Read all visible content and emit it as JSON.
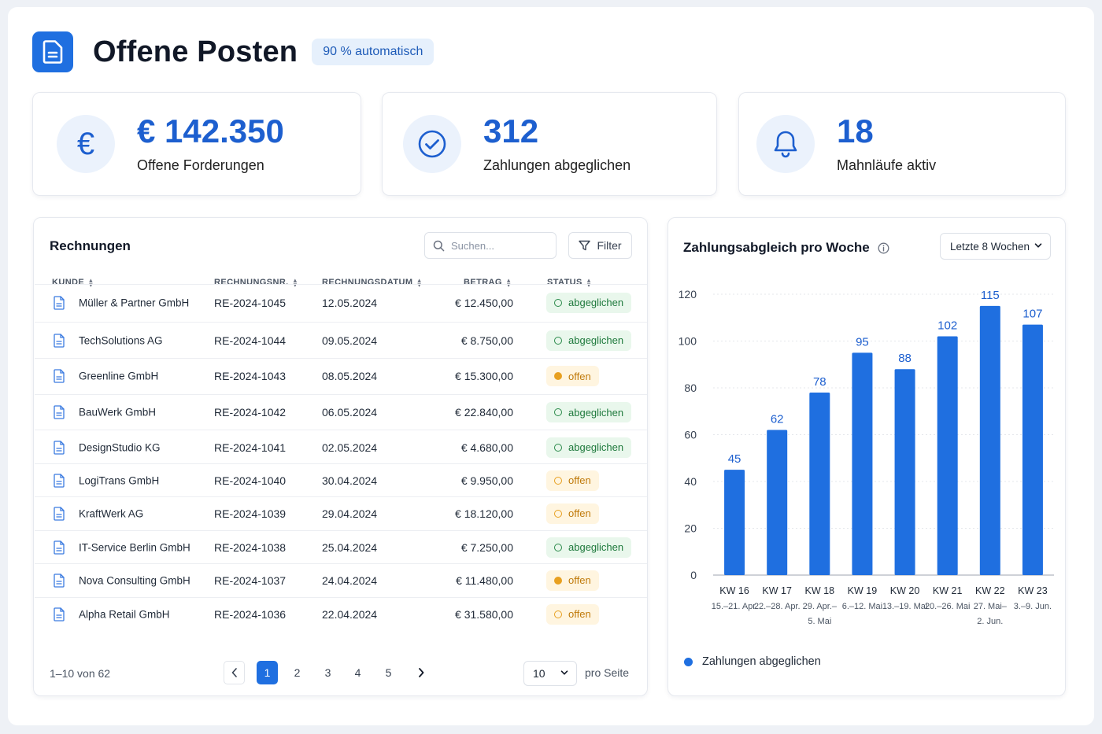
{
  "header": {
    "title": "Offene Posten",
    "badge": "90 % automatisch",
    "icon": "document-icon"
  },
  "kpis": [
    {
      "value": "€ 142.350",
      "label": "Offene Forderungen",
      "icon": "euro-icon"
    },
    {
      "value": "312",
      "label": "Zahlungen abgeglichen",
      "icon": "check-circle-icon"
    },
    {
      "value": "18",
      "label": "Mahnläufe aktiv",
      "icon": "bell-icon"
    }
  ],
  "invoices": {
    "title": "Rechnungen",
    "search_placeholder": "Suchen...",
    "filter_label": "Filter",
    "columns": [
      "KUNDE",
      "RECHNUNGSNR.",
      "RECHNUNGSDATUM",
      "BETRAG",
      "STATUS"
    ],
    "rows": [
      {
        "kunde": "Müller & Partner GmbH",
        "nr": "RE-2024-1045",
        "date": "12.05.2024",
        "amount": "€ 12.450,00",
        "status": "abgeglichen",
        "state": "ok"
      },
      {
        "kunde": "TechSolutions AG",
        "nr": "RE-2024-1044",
        "date": "09.05.2024",
        "amount": "€ 8.750,00",
        "status": "abgeglichen",
        "state": "ok"
      },
      {
        "kunde": "Greenline GmbH",
        "nr": "RE-2024-1043",
        "date": "08.05.2024",
        "amount": "€ 15.300,00",
        "status": "offen",
        "state": "open-filled"
      },
      {
        "kunde": "BauWerk GmbH",
        "nr": "RE-2024-1042",
        "date": "06.05.2024",
        "amount": "€ 22.840,00",
        "status": "abgeglichen",
        "state": "ok"
      },
      {
        "kunde": "DesignStudio KG",
        "nr": "RE-2024-1041",
        "date": "02.05.2024",
        "amount": "€ 4.680,00",
        "status": "abgeglichen",
        "state": "ok"
      },
      {
        "kunde": "LogiTrans GmbH",
        "nr": "RE-2024-1040",
        "date": "30.04.2024",
        "amount": "€ 9.950,00",
        "status": "offen",
        "state": "open-hollow"
      },
      {
        "kunde": "KraftWerk AG",
        "nr": "RE-2024-1039",
        "date": "29.04.2024",
        "amount": "€ 18.120,00",
        "status": "offen",
        "state": "open-hollow"
      },
      {
        "kunde": "IT-Service Berlin GmbH",
        "nr": "RE-2024-1038",
        "date": "25.04.2024",
        "amount": "€ 7.250,00",
        "status": "abgeglichen",
        "state": "ok"
      },
      {
        "kunde": "Nova Consulting GmbH",
        "nr": "RE-2024-1037",
        "date": "24.04.2024",
        "amount": "€ 11.480,00",
        "status": "offen",
        "state": "open-filled"
      },
      {
        "kunde": "Alpha Retail GmbH",
        "nr": "RE-2024-1036",
        "date": "22.04.2024",
        "amount": "€ 31.580,00",
        "status": "offen",
        "state": "open-hollow"
      }
    ],
    "pagination": {
      "info": "1–10 von 62",
      "pages": [
        "1",
        "2",
        "3",
        "4",
        "5"
      ],
      "current": "1",
      "per_page": "10",
      "per_page_label": "pro Seite"
    }
  },
  "chart_panel": {
    "title": "Zahlungsabgleich pro Woche",
    "range": "Letzte 8 Wochen"
  },
  "chart_data": {
    "type": "bar",
    "categories": [
      "KW 16",
      "KW 17",
      "KW 18",
      "KW 19",
      "KW 20",
      "KW 21",
      "KW 22",
      "KW 23"
    ],
    "sublabels": [
      [
        "15.–21. Apr."
      ],
      [
        "22.–28. Apr."
      ],
      [
        "29. Apr.–",
        "5. Mai"
      ],
      [
        "6.–12. Mai"
      ],
      [
        "13.–19. Mai"
      ],
      [
        "20.–26. Mai"
      ],
      [
        "27. Mai–",
        "2. Jun."
      ],
      [
        "3.–9. Jun."
      ]
    ],
    "series": [
      {
        "name": "Zahlungen abgeglichen",
        "values": [
          45,
          62,
          78,
          95,
          88,
          102,
          115,
          107
        ]
      }
    ],
    "ylim": [
      0,
      120
    ],
    "yticks": [
      0,
      20,
      40,
      60,
      80,
      100,
      120
    ],
    "grid": true,
    "legend": "bottom-left",
    "color": "#1f6fe0"
  },
  "colors": {
    "accent": "#1f6fe0",
    "ok": "#1f7a3d",
    "open": "#e8a020"
  }
}
